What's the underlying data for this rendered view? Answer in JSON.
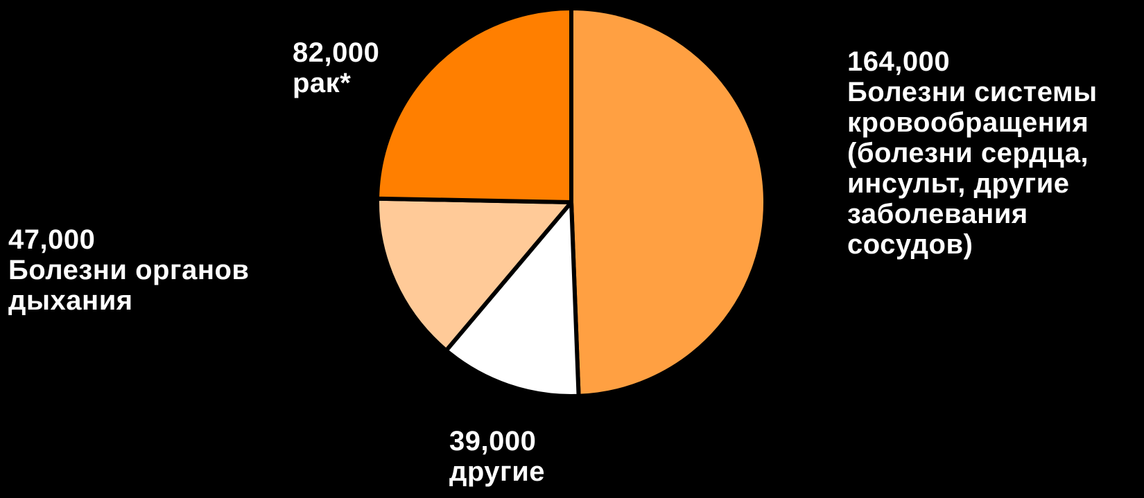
{
  "chart_data": {
    "type": "pie",
    "slices": [
      {
        "key": "circ",
        "value": 164000,
        "value_label": "164,000",
        "label": "Болезни системы\nкровообращения\n(болезни сердца,\nинсульт, другие\nзаболевания\nсосудов)",
        "color": "#FFA042"
      },
      {
        "key": "other",
        "value": 39000,
        "value_label": "39,000",
        "label": "другие",
        "color": "#FFFFFF"
      },
      {
        "key": "resp",
        "value": 47000,
        "value_label": "47,000",
        "label": "Болезни органов\nдыхания",
        "color": "#FFCA98"
      },
      {
        "key": "cancer",
        "value": 82000,
        "value_label": "82,000",
        "label": "рак*",
        "color": "#FF7F00"
      }
    ],
    "start_angle_deg": 0,
    "direction": "clockwise",
    "border_color": "#000000",
    "background": "#000000"
  }
}
